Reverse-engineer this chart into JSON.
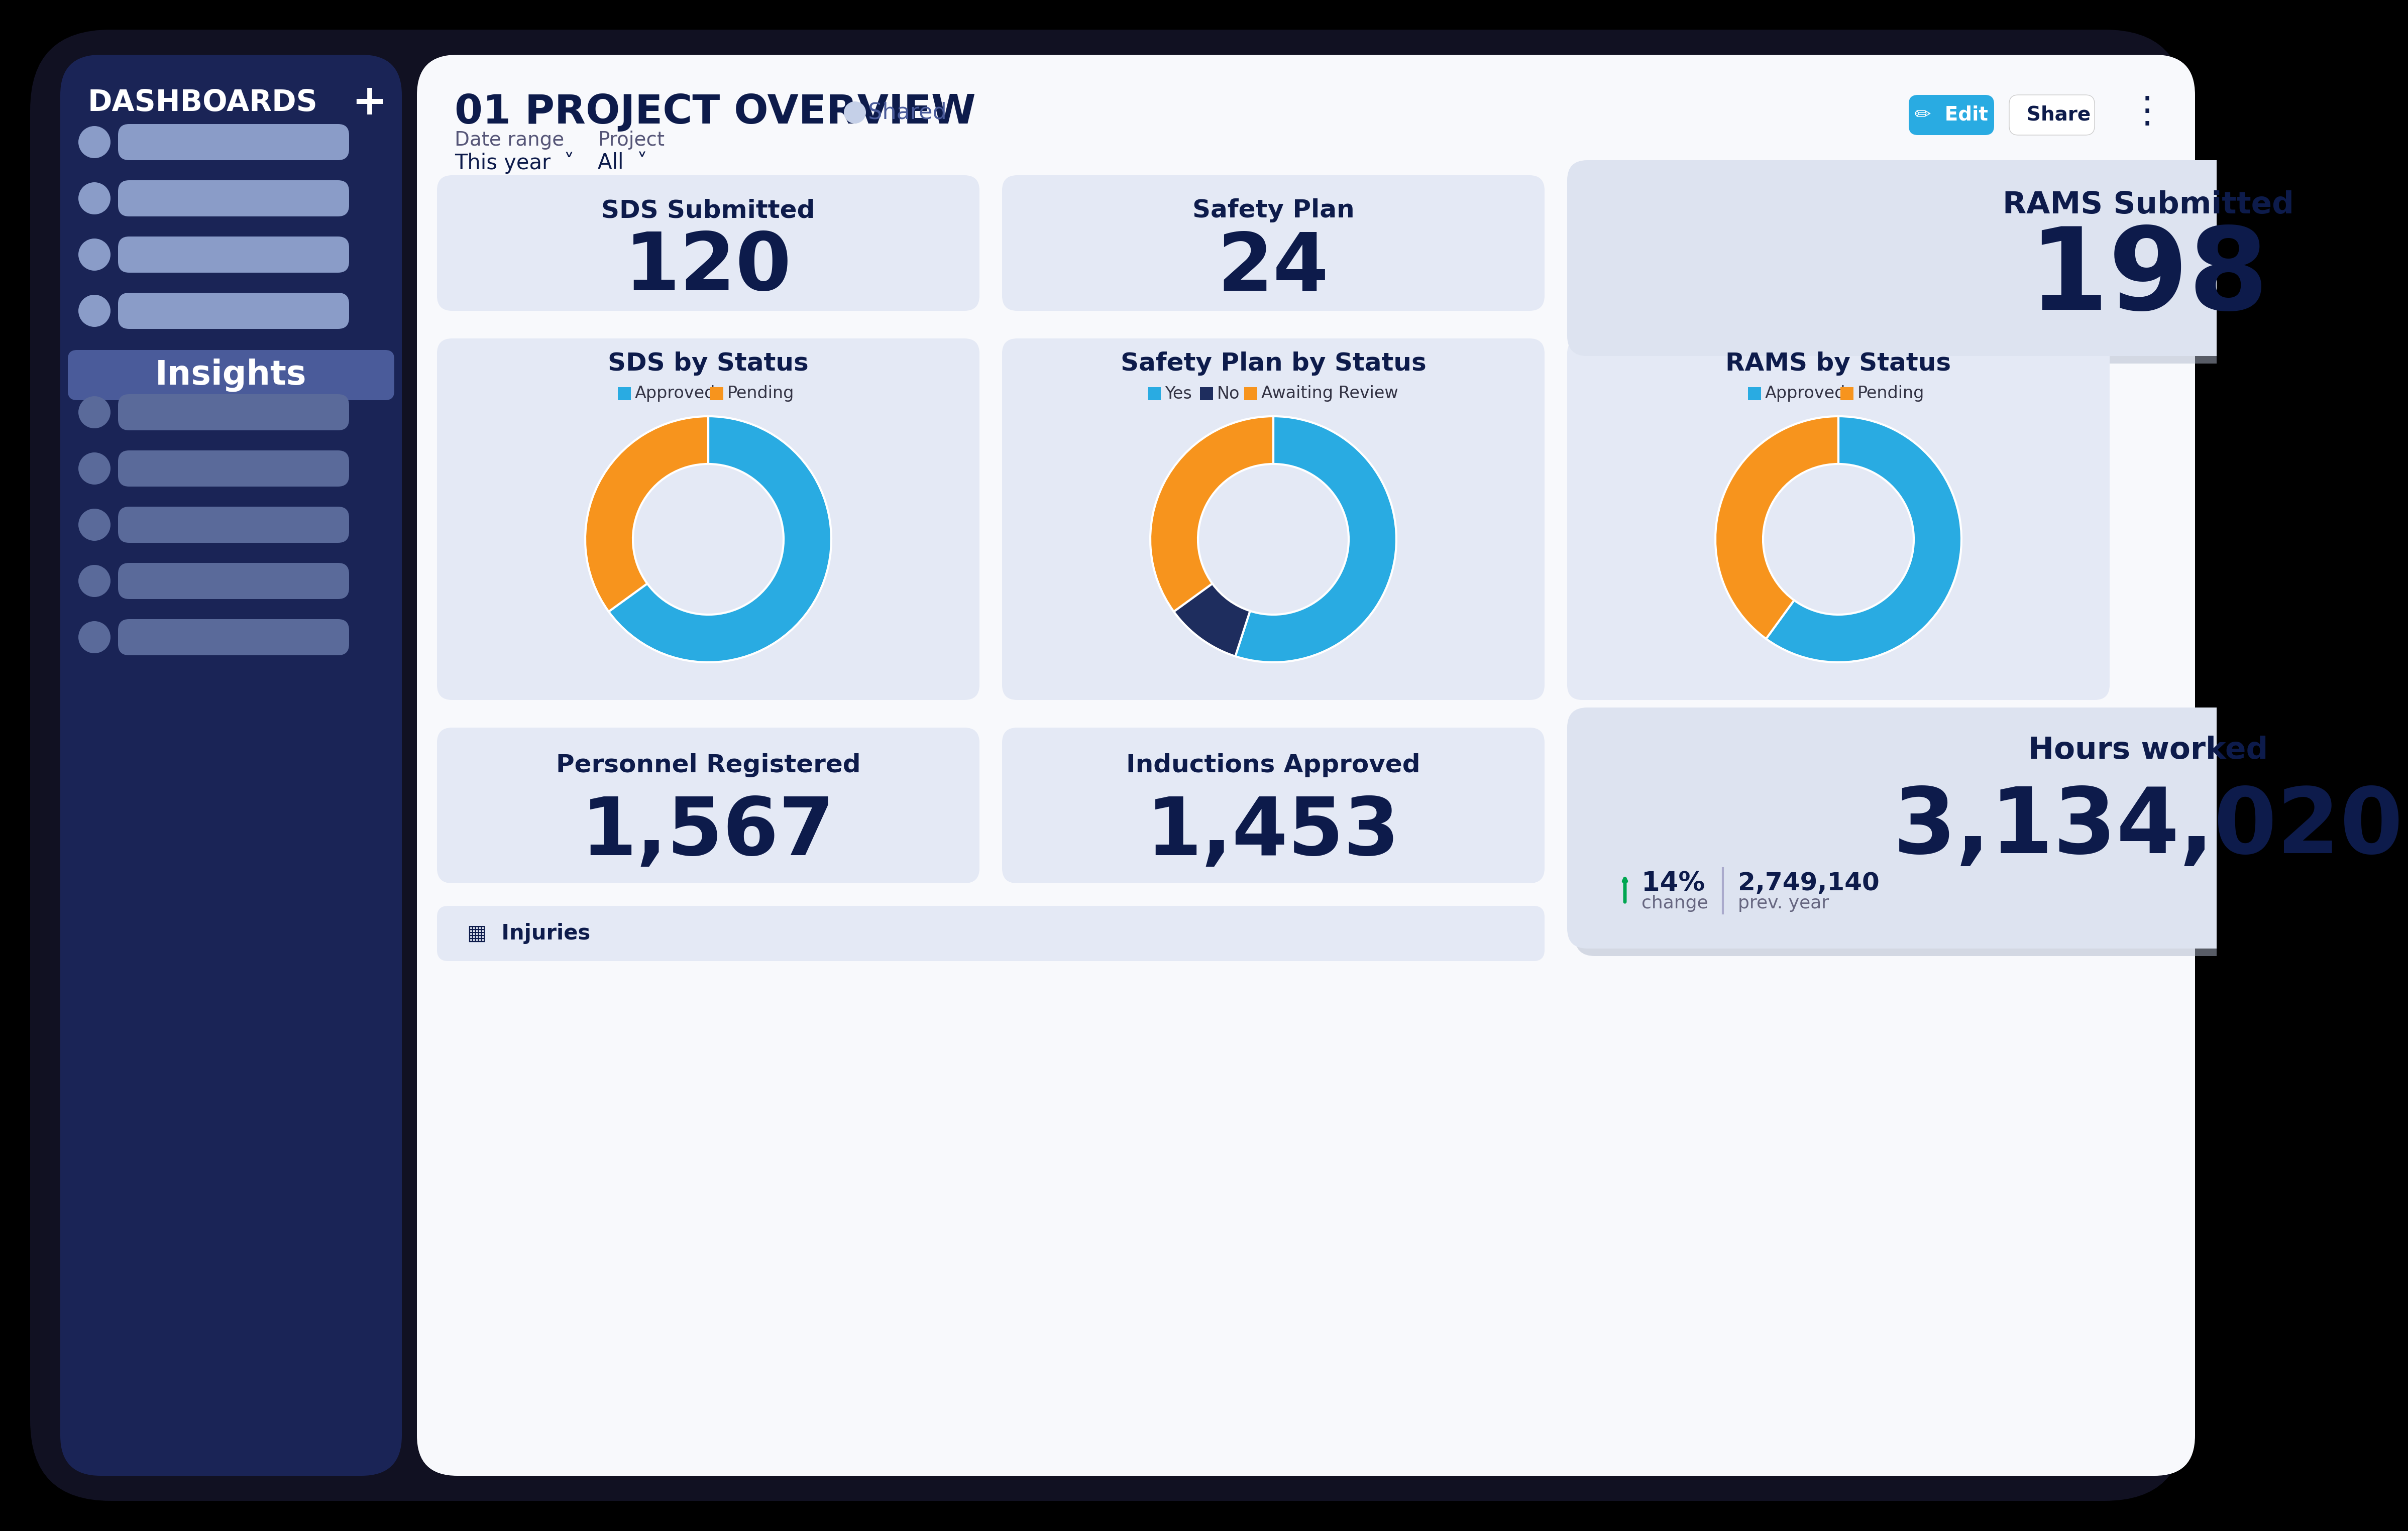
{
  "sidebar_bg": "#1a2456",
  "sidebar_highlight": "#4a5b9a",
  "main_bg": "#f8f9fc",
  "card_bg": "#e4e9f5",
  "dark_navy": "#0d1b4b",
  "cyan_blue": "#29abe2",
  "orange": "#f7941d",
  "dark_navy2": "#1e2d5e",
  "green": "#00a651",
  "title": "01 PROJECT OVERVIEW",
  "shared_text": "Shared",
  "date_range_label": "Date range",
  "date_range_value": "This year",
  "project_label": "Project",
  "project_value": "All",
  "sds_title": "SDS Submitted",
  "sds_value": "120",
  "safety_title": "Safety Plan",
  "safety_value": "24",
  "rams_title": "RAMS Submitted",
  "rams_value": "198",
  "sds_status_title": "SDS by Status",
  "safety_status_title": "Safety Plan by Status",
  "rams_status_title": "RAMS by Status",
  "personnel_title": "Personnel Registered",
  "personnel_value": "1,567",
  "inductions_title": "Inductions Approved",
  "inductions_value": "1,453",
  "hours_title": "Hours worked",
  "hours_value": "3,134,020",
  "hours_change": "14%",
  "hours_change_label": "change",
  "hours_prev": "2,749,140",
  "hours_prev_label": "prev. year",
  "sds_donut": [
    65,
    35
  ],
  "safety_donut": [
    55,
    10,
    35
  ],
  "rams_donut": [
    60,
    40
  ],
  "injuries_label": "Injuries",
  "edit_btn": "Edit",
  "share_btn": "Share",
  "menu_item_color_top": "#8a9cc8",
  "menu_item_color_bottom": "#5a6a9a"
}
